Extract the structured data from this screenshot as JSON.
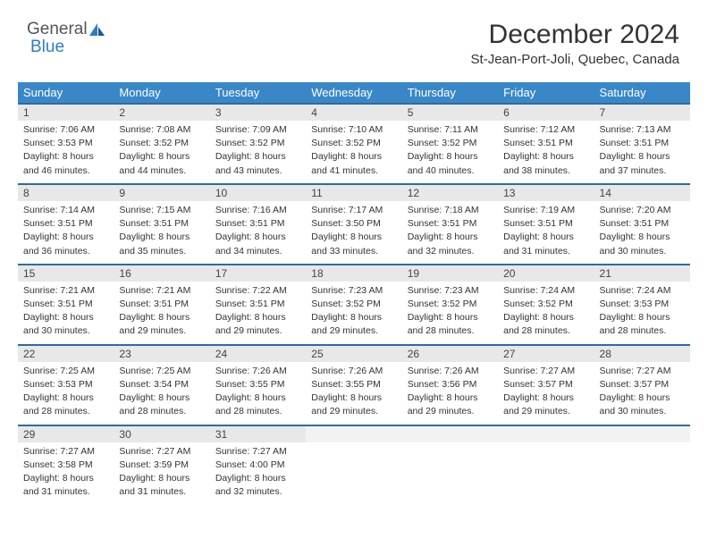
{
  "brand": {
    "part1": "General",
    "part2": "Blue"
  },
  "title": "December 2024",
  "location": "St-Jean-Port-Joli, Quebec, Canada",
  "colors": {
    "header_bg": "#3a87c8",
    "header_border": "#2a6da3",
    "daynum_bg": "#e8e8e8",
    "brand_blue": "#2f7dc0",
    "text": "#333333"
  },
  "weekdays": [
    "Sunday",
    "Monday",
    "Tuesday",
    "Wednesday",
    "Thursday",
    "Friday",
    "Saturday"
  ],
  "days": [
    {
      "n": 1,
      "sunrise": "7:06 AM",
      "sunset": "3:53 PM",
      "day_h": 8,
      "day_m": 46
    },
    {
      "n": 2,
      "sunrise": "7:08 AM",
      "sunset": "3:52 PM",
      "day_h": 8,
      "day_m": 44
    },
    {
      "n": 3,
      "sunrise": "7:09 AM",
      "sunset": "3:52 PM",
      "day_h": 8,
      "day_m": 43
    },
    {
      "n": 4,
      "sunrise": "7:10 AM",
      "sunset": "3:52 PM",
      "day_h": 8,
      "day_m": 41
    },
    {
      "n": 5,
      "sunrise": "7:11 AM",
      "sunset": "3:52 PM",
      "day_h": 8,
      "day_m": 40
    },
    {
      "n": 6,
      "sunrise": "7:12 AM",
      "sunset": "3:51 PM",
      "day_h": 8,
      "day_m": 38
    },
    {
      "n": 7,
      "sunrise": "7:13 AM",
      "sunset": "3:51 PM",
      "day_h": 8,
      "day_m": 37
    },
    {
      "n": 8,
      "sunrise": "7:14 AM",
      "sunset": "3:51 PM",
      "day_h": 8,
      "day_m": 36
    },
    {
      "n": 9,
      "sunrise": "7:15 AM",
      "sunset": "3:51 PM",
      "day_h": 8,
      "day_m": 35
    },
    {
      "n": 10,
      "sunrise": "7:16 AM",
      "sunset": "3:51 PM",
      "day_h": 8,
      "day_m": 34
    },
    {
      "n": 11,
      "sunrise": "7:17 AM",
      "sunset": "3:50 PM",
      "day_h": 8,
      "day_m": 33
    },
    {
      "n": 12,
      "sunrise": "7:18 AM",
      "sunset": "3:51 PM",
      "day_h": 8,
      "day_m": 32
    },
    {
      "n": 13,
      "sunrise": "7:19 AM",
      "sunset": "3:51 PM",
      "day_h": 8,
      "day_m": 31
    },
    {
      "n": 14,
      "sunrise": "7:20 AM",
      "sunset": "3:51 PM",
      "day_h": 8,
      "day_m": 30
    },
    {
      "n": 15,
      "sunrise": "7:21 AM",
      "sunset": "3:51 PM",
      "day_h": 8,
      "day_m": 30
    },
    {
      "n": 16,
      "sunrise": "7:21 AM",
      "sunset": "3:51 PM",
      "day_h": 8,
      "day_m": 29
    },
    {
      "n": 17,
      "sunrise": "7:22 AM",
      "sunset": "3:51 PM",
      "day_h": 8,
      "day_m": 29
    },
    {
      "n": 18,
      "sunrise": "7:23 AM",
      "sunset": "3:52 PM",
      "day_h": 8,
      "day_m": 29
    },
    {
      "n": 19,
      "sunrise": "7:23 AM",
      "sunset": "3:52 PM",
      "day_h": 8,
      "day_m": 28
    },
    {
      "n": 20,
      "sunrise": "7:24 AM",
      "sunset": "3:52 PM",
      "day_h": 8,
      "day_m": 28
    },
    {
      "n": 21,
      "sunrise": "7:24 AM",
      "sunset": "3:53 PM",
      "day_h": 8,
      "day_m": 28
    },
    {
      "n": 22,
      "sunrise": "7:25 AM",
      "sunset": "3:53 PM",
      "day_h": 8,
      "day_m": 28
    },
    {
      "n": 23,
      "sunrise": "7:25 AM",
      "sunset": "3:54 PM",
      "day_h": 8,
      "day_m": 28
    },
    {
      "n": 24,
      "sunrise": "7:26 AM",
      "sunset": "3:55 PM",
      "day_h": 8,
      "day_m": 28
    },
    {
      "n": 25,
      "sunrise": "7:26 AM",
      "sunset": "3:55 PM",
      "day_h": 8,
      "day_m": 29
    },
    {
      "n": 26,
      "sunrise": "7:26 AM",
      "sunset": "3:56 PM",
      "day_h": 8,
      "day_m": 29
    },
    {
      "n": 27,
      "sunrise": "7:27 AM",
      "sunset": "3:57 PM",
      "day_h": 8,
      "day_m": 29
    },
    {
      "n": 28,
      "sunrise": "7:27 AM",
      "sunset": "3:57 PM",
      "day_h": 8,
      "day_m": 30
    },
    {
      "n": 29,
      "sunrise": "7:27 AM",
      "sunset": "3:58 PM",
      "day_h": 8,
      "day_m": 31
    },
    {
      "n": 30,
      "sunrise": "7:27 AM",
      "sunset": "3:59 PM",
      "day_h": 8,
      "day_m": 31
    },
    {
      "n": 31,
      "sunrise": "7:27 AM",
      "sunset": "4:00 PM",
      "day_h": 8,
      "day_m": 32
    }
  ],
  "labels": {
    "sunrise": "Sunrise:",
    "sunset": "Sunset:",
    "daylight": "Daylight:",
    "hours": "hours",
    "and": "and",
    "minutes": "minutes."
  },
  "layout": {
    "start_weekday": 0,
    "trailing_empty": 4
  }
}
